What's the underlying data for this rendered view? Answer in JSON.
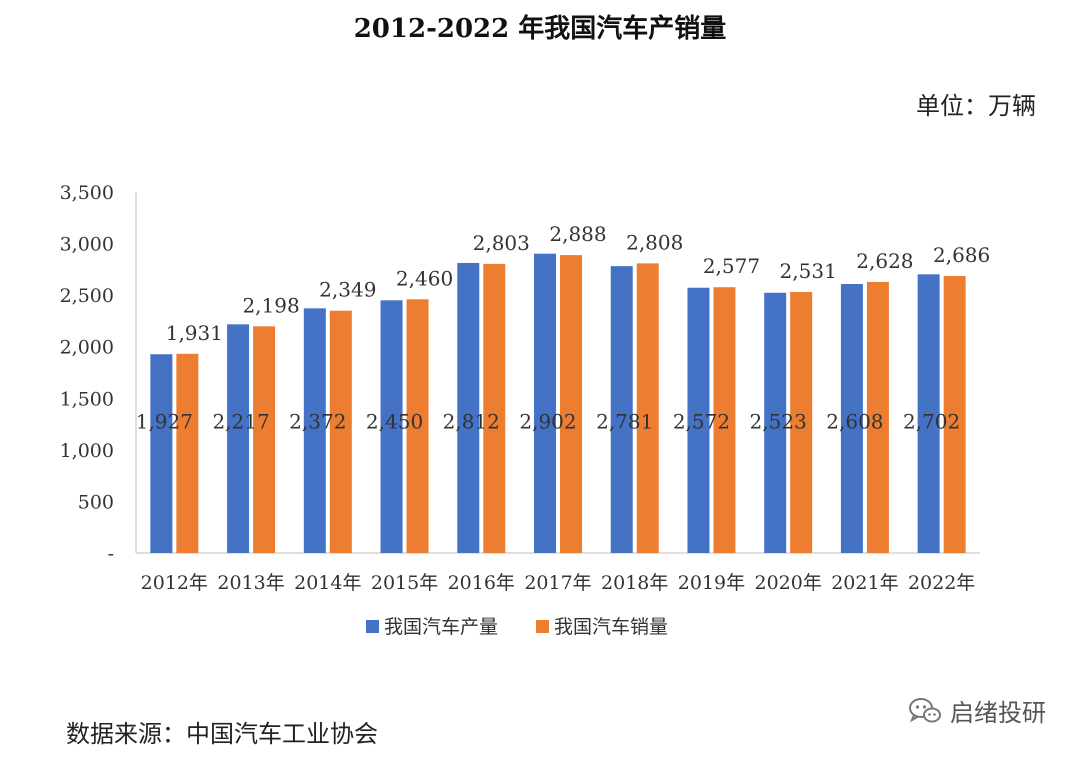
{
  "chart_data": {
    "type": "bar",
    "title": "2012-2022 年我国汽车产销量",
    "unit": "单位：万辆",
    "categories": [
      "2012年",
      "2013年",
      "2014年",
      "2015年",
      "2016年",
      "2017年",
      "2018年",
      "2019年",
      "2020年",
      "2021年",
      "2022年"
    ],
    "series": [
      {
        "name": "我国汽车产量",
        "color": "#4472C4",
        "values": [
          1927,
          2217,
          2372,
          2450,
          2812,
          2902,
          2781,
          2572,
          2523,
          2608,
          2702
        ],
        "labels": [
          "1,927",
          "2,217",
          "2,372",
          "2,450",
          "2,812",
          "2,902",
          "2,781",
          "2,572",
          "2,523",
          "2,608",
          "2,702"
        ]
      },
      {
        "name": "我国汽车销量",
        "color": "#ED7D31",
        "values": [
          1931,
          2198,
          2349,
          2460,
          2803,
          2888,
          2808,
          2577,
          2531,
          2628,
          2686
        ],
        "labels": [
          "1,931",
          "2,198",
          "2,349",
          "2,460",
          "2,803",
          "2,888",
          "2,808",
          "2,577",
          "2,531",
          "2,628",
          "2,686"
        ]
      }
    ],
    "ylim": [
      0,
      3500
    ],
    "yticks": [
      0,
      500,
      1000,
      1500,
      2000,
      2500,
      3000,
      3500
    ],
    "ytick_labels": [
      "-",
      "500",
      "1,000",
      "1,500",
      "2,000",
      "2,500",
      "3,000",
      "3,500"
    ],
    "grid": false,
    "legend": "bottom"
  },
  "source": "数据来源：中国汽车工业协会",
  "watermark": "启绪投研"
}
